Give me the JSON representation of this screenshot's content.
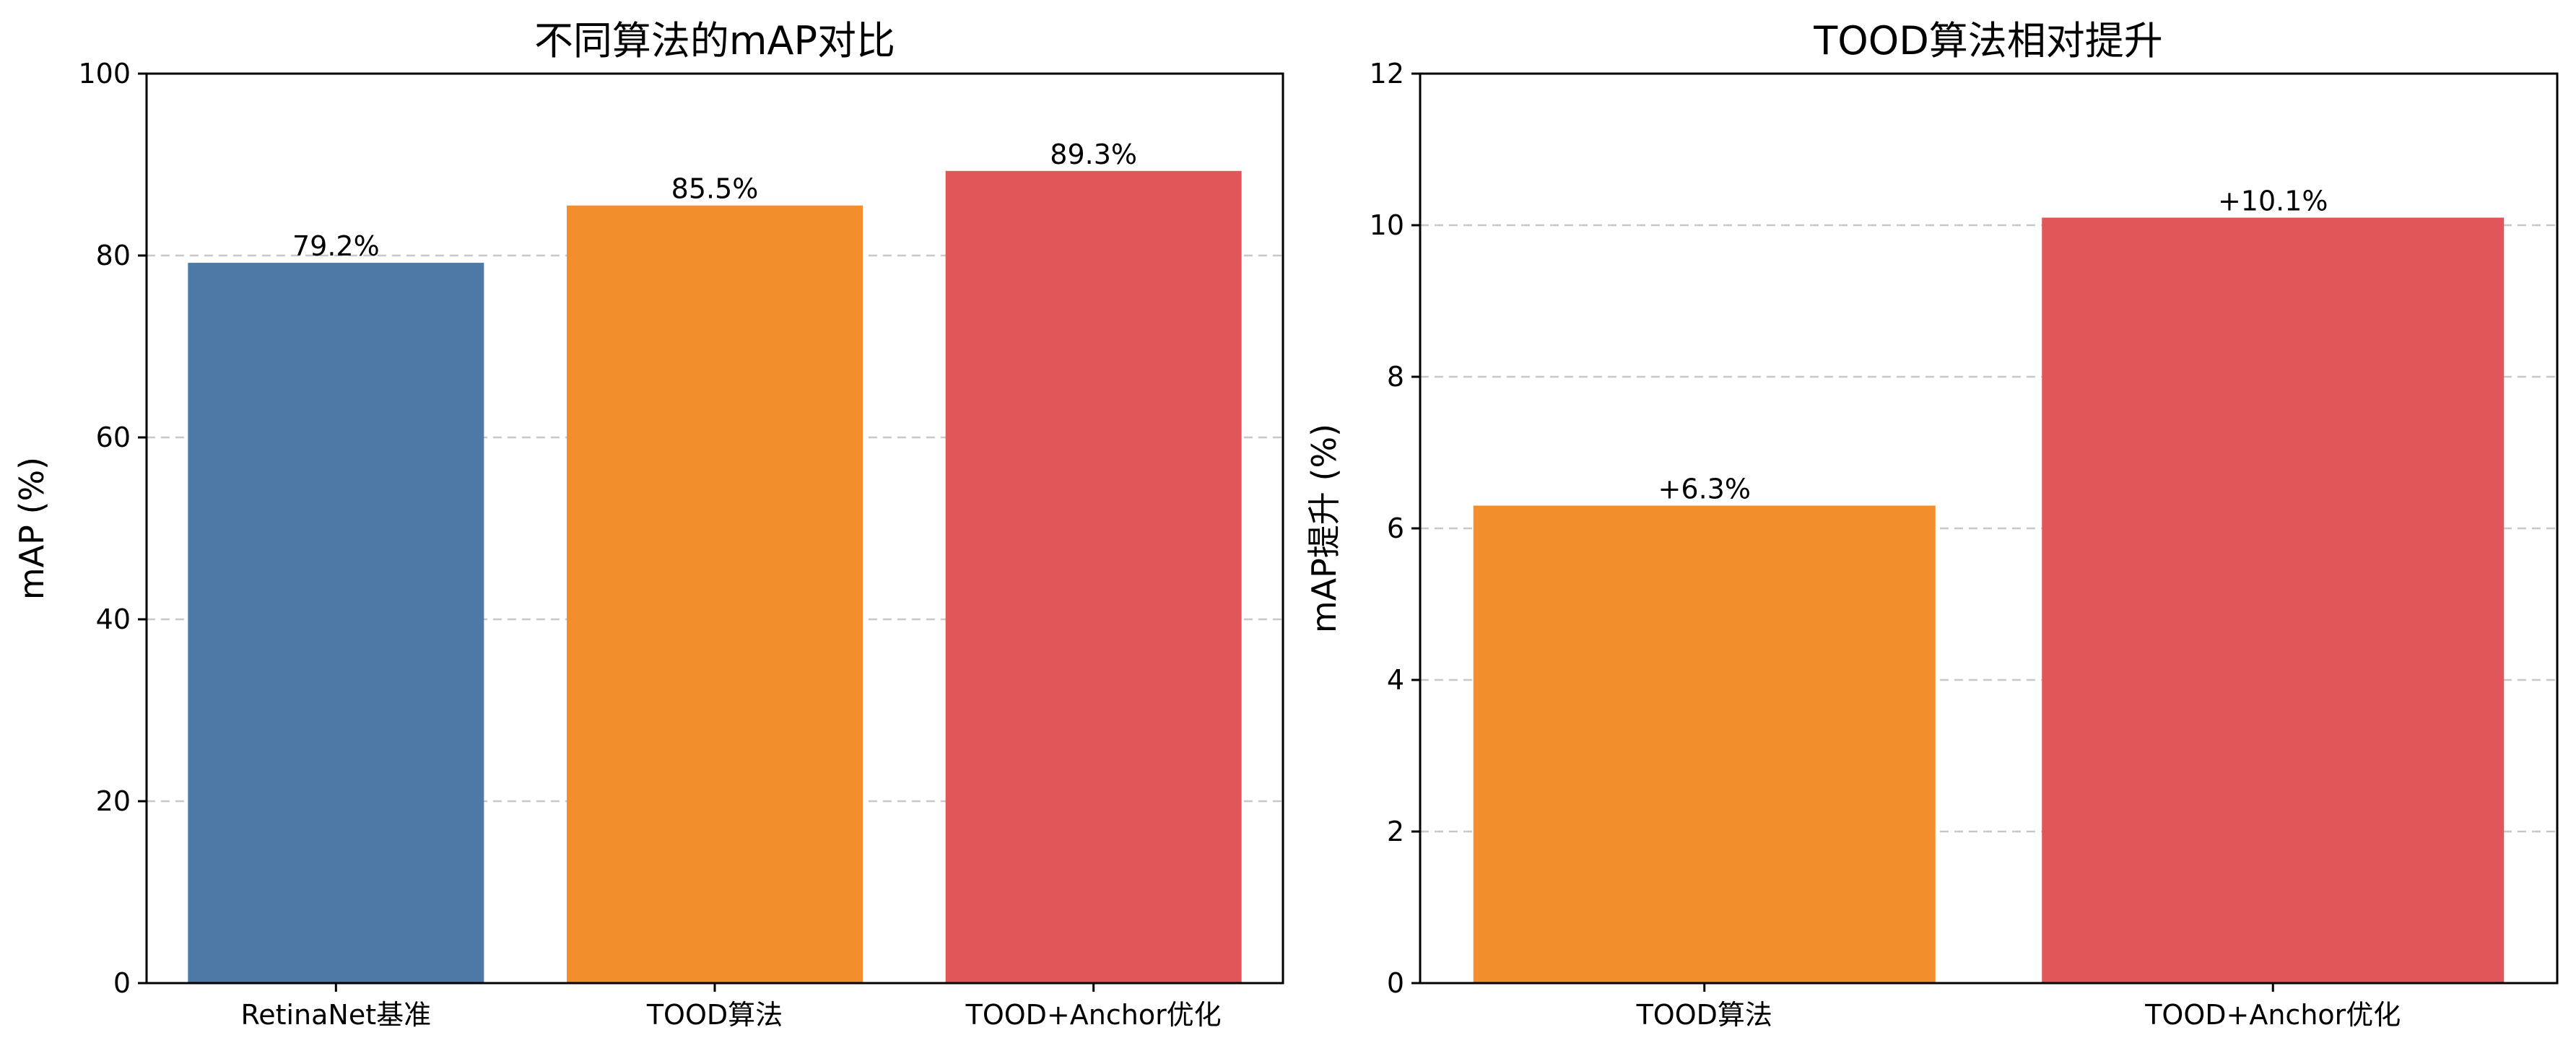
{
  "chart_data": [
    {
      "type": "bar",
      "title": "不同算法的mAP对比",
      "xlabel": "",
      "ylabel": "mAP (%)",
      "ylim": [
        0,
        100
      ],
      "yticks": [
        "0",
        "20",
        "40",
        "60",
        "80",
        "100"
      ],
      "grid": true,
      "categories": [
        "RetinaNet基准",
        "TOOD算法",
        "TOOD+Anchor优化"
      ],
      "values": [
        79.2,
        85.5,
        89.3
      ],
      "data_labels": [
        "79.2%",
        "85.5%",
        "89.3%"
      ],
      "colors": [
        "#4e79a7",
        "#f28e2b",
        "#e15759"
      ]
    },
    {
      "type": "bar",
      "title": "TOOD算法相对提升",
      "xlabel": "",
      "ylabel": "mAP提升 (%)",
      "ylim": [
        0,
        12
      ],
      "yticks": [
        "0",
        "2",
        "4",
        "6",
        "8",
        "10",
        "12"
      ],
      "grid": true,
      "categories": [
        "TOOD算法",
        "TOOD+Anchor优化"
      ],
      "values": [
        6.3,
        10.1
      ],
      "data_labels": [
        "+6.3%",
        "+10.1%"
      ],
      "colors": [
        "#f28e2b",
        "#e15759"
      ]
    }
  ]
}
